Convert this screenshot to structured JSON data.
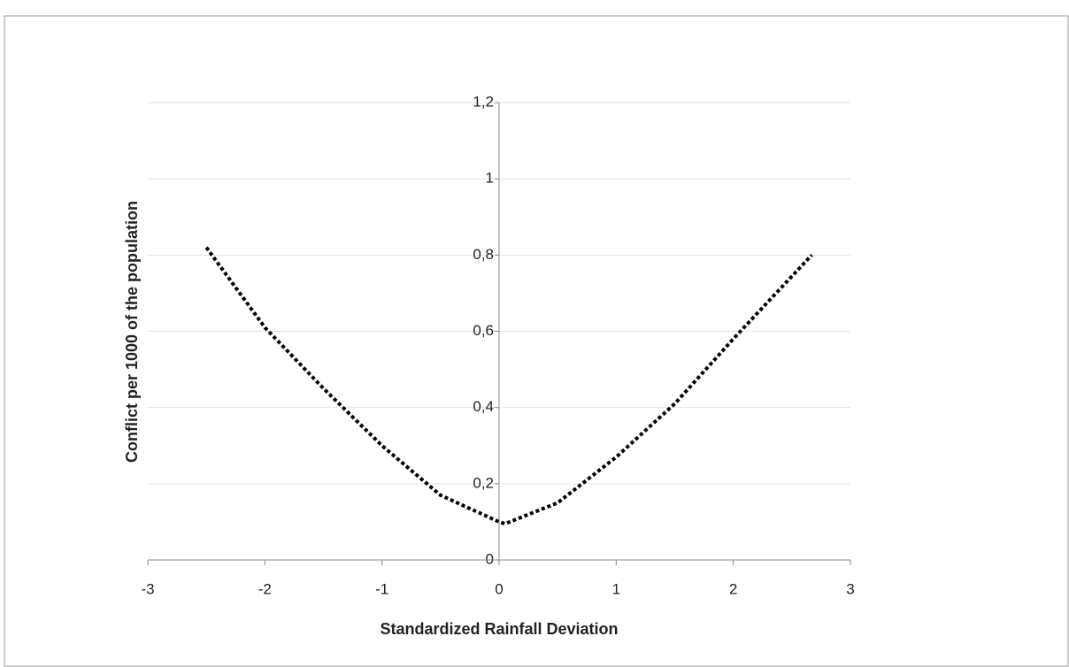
{
  "chart_data": {
    "type": "line",
    "x_label": "Standardized Rainfall Deviation",
    "y_label": "Conflict per 1000 of the population",
    "x": [
      -2.5,
      -2,
      -1.5,
      -1,
      -0.5,
      0,
      0.05,
      0.5,
      1,
      1.5,
      2,
      2.67
    ],
    "values": [
      0.82,
      0.61,
      0.45,
      0.3,
      0.17,
      0.1,
      0.095,
      0.15,
      0.27,
      0.41,
      0.58,
      0.8
    ],
    "color": "#000000",
    "xlim": [
      -3,
      3
    ],
    "xticks": [
      -3,
      -2,
      -1,
      0,
      1,
      2,
      3
    ],
    "ylim": [
      0,
      1.2
    ],
    "yticks": [
      0,
      {
        "value": 0.2,
        "label": "0,2"
      },
      {
        "value": 0.4,
        "label": "0,4"
      },
      {
        "value": 0.6,
        "label": "0,6"
      },
      {
        "value": 0.8,
        "label": "0,8"
      },
      1,
      {
        "value": 1.2,
        "label": "1,2"
      }
    ],
    "grid": true
  }
}
